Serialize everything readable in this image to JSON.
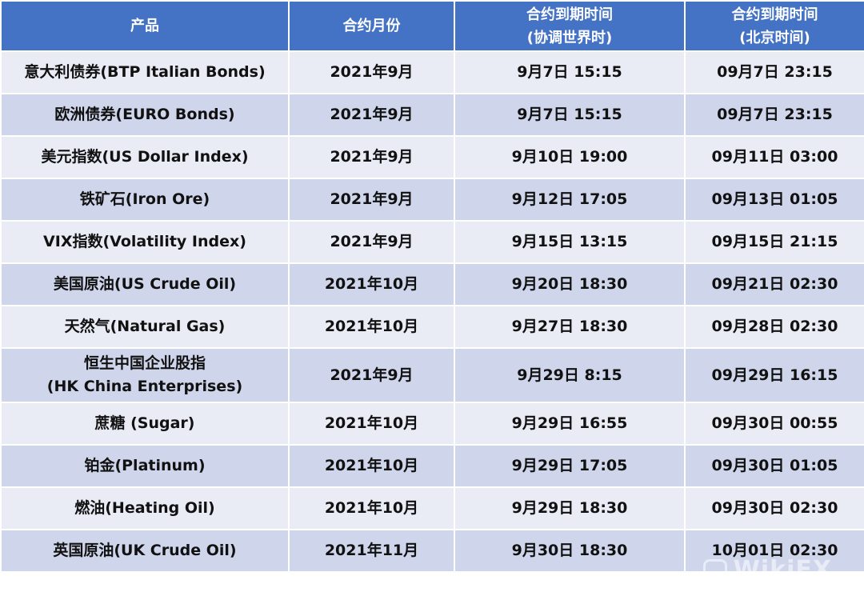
{
  "header": [
    "产品",
    "合约月份",
    "合约到期时间\n(协调世界时)",
    "合约到期时间\n(北京时间)"
  ],
  "header_lines": [
    [
      "产品"
    ],
    [
      "合约月份"
    ],
    [
      "合约到期时间",
      "(协调世界时)"
    ],
    [
      "合约到期时间",
      "(北京时间)"
    ]
  ],
  "rows": [
    {
      "product": [
        "意大利债券(BTP Italian Bonds)"
      ],
      "month": "2021年9月",
      "utc": "9月7日 15:15",
      "beijing": "09月7日 23:15"
    },
    {
      "product": [
        "欧洲债券(EURO Bonds)"
      ],
      "month": "2021年9月",
      "utc": "9月7日 15:15",
      "beijing": "09月7日 23:15"
    },
    {
      "product": [
        "美元指数(US Dollar Index)"
      ],
      "month": "2021年9月",
      "utc": "9月10日 19:00",
      "beijing": "09月11日 03:00"
    },
    {
      "product": [
        "铁矿石(Iron Ore)"
      ],
      "month": "2021年9月",
      "utc": "9月12日 17:05",
      "beijing": "09月13日 01:05"
    },
    {
      "product": [
        "VIX指数(Volatility Index)"
      ],
      "month": "2021年9月",
      "utc": "9月15日 13:15",
      "beijing": "09月15日 21:15"
    },
    {
      "product": [
        "美国原油(US Crude Oil)"
      ],
      "month": "2021年10月",
      "utc": "9月20日 18:30",
      "beijing": "09月21日 02:30"
    },
    {
      "product": [
        "天然气(Natural Gas)"
      ],
      "month": "2021年10月",
      "utc": "9月27日 18:30",
      "beijing": "09月28日 02:30"
    },
    {
      "product": [
        "恒生中国企业股指",
        "(HK China Enterprises)"
      ],
      "month": "2021年9月",
      "utc": "9月29日 8:15",
      "beijing": "09月29日 16:15"
    },
    {
      "product": [
        "蔗糖 (Sugar)"
      ],
      "month": "2021年10月",
      "utc": "9月29日 16:55",
      "beijing": "09月30日 00:55"
    },
    {
      "product": [
        "铂金(Platinum)"
      ],
      "month": "2021年10月",
      "utc": "9月29日 17:05",
      "beijing": "09月30日 01:05"
    },
    {
      "product": [
        "燃油(Heating Oil)"
      ],
      "month": "2021年10月",
      "utc": "9月29日 18:30",
      "beijing": "09月30日 02:30"
    },
    {
      "product": [
        "英国原油(UK Crude Oil)"
      ],
      "month": "2021年11月",
      "utc": "9月30日 18:30",
      "beijing": "10月01日 02:30"
    }
  ],
  "watermark": "WikiFX",
  "colors": {
    "header_bg": "#4472C4",
    "row_light": "#E9EBF5",
    "row_dark": "#CFD5EA"
  }
}
